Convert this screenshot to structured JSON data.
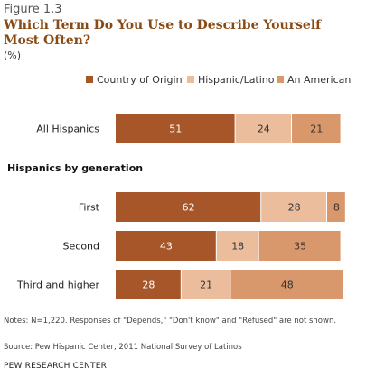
{
  "figure": {
    "label": "Figure 1.3",
    "title": "Which Term Do You Use to Describe Yourself Most Often?",
    "subtitle": "(%)"
  },
  "chart_data": {
    "type": "bar",
    "orientation": "horizontal",
    "stacked": true,
    "categories": [
      "All Hispanics",
      "First",
      "Second",
      "Third and higher"
    ],
    "group_label": "Hispanics by generation",
    "series": [
      {
        "name": "Country of Origin",
        "values": [
          51,
          62,
          43,
          28
        ],
        "color": "#a65628"
      },
      {
        "name": "Hispanic/Latino",
        "values": [
          24,
          28,
          18,
          21
        ],
        "color": "#ebbd9c"
      },
      {
        "name": "An American",
        "values": [
          21,
          8,
          35,
          48
        ],
        "color": "#d9986b"
      }
    ],
    "xlim": [
      0,
      100
    ],
    "legend_position": "top",
    "grid": false
  },
  "footer": {
    "notes": "Notes: N=1,220.  Responses of \"Depends,\" \"Don't know\" and \"Refused\" are not shown.",
    "source": "Source: Pew Hispanic Center, 2011 National Survey of Latinos",
    "org": "PEW RESEARCH CENTER"
  }
}
